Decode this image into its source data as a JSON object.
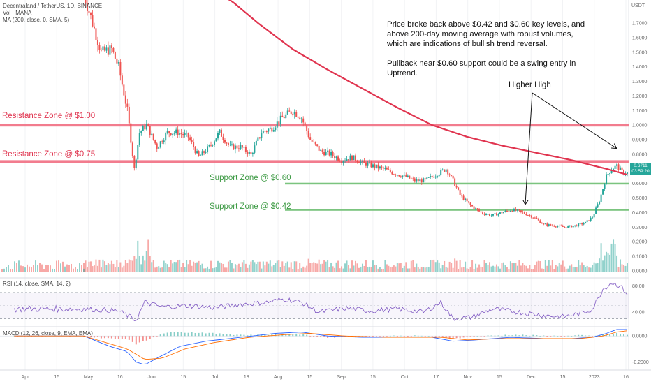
{
  "header": {
    "symbol_line": "Decentraland / TetherUS, 1D, BINANCE",
    "vol_line": "Vol · MANA",
    "ma_line": "MA (200, close, 0, SMA, 5)"
  },
  "annotations": {
    "note_p1": "Price broke back above $0.42 and $0.60 key levels, and above 200-day moving average with robust volumes, which are indications of bullish trend reversal.",
    "note_p2": "Pullback near $0.60 support could be a swing entry in Uptrend.",
    "higher_high": "Higher High"
  },
  "zones": {
    "res_100": "Resistance Zone @ $1.00",
    "res_075": "Resistance Zone @ $0.75",
    "sup_060": "Support Zone @ $0.60",
    "sup_042": "Support Zone @ $0.42"
  },
  "price_tag": {
    "price": "0.6711",
    "countdown": "03:59:20"
  },
  "axis_unit": "USDT",
  "rsi_title": "RSI (14, close, SMA, 14, 2)",
  "macd_title": "MACD (12, 26, close, 9, EMA, EMA)",
  "colors": {
    "up": "#26a69a",
    "down": "#ef5350",
    "ma": "#e0344f",
    "resistance": "#f0657a",
    "support": "#7bc47f",
    "rsi": "#7e57c2",
    "macd": "#2962ff",
    "signal": "#ff6d00"
  },
  "chart_data": {
    "type": "candlestick",
    "title": "Decentraland / TetherUS, 1D, BINANCE",
    "price_ticks": [
      "1.7000",
      "1.6000",
      "1.5000",
      "1.4000",
      "1.3000",
      "1.2000",
      "1.1000",
      "1.0000",
      "0.9000",
      "0.8000",
      "0.7000",
      "0.6000",
      "0.5000",
      "0.4000",
      "0.3000",
      "0.2000",
      "0.1000",
      "0.0000"
    ],
    "rsi_ticks": [
      "80.00",
      "40.00"
    ],
    "macd_ticks": [
      "0.0000",
      "-0.2000"
    ],
    "x_ticks": [
      "Apr",
      "15",
      "May",
      "16",
      "Jun",
      "15",
      "Jul",
      "18",
      "Aug",
      "15",
      "Sep",
      "15",
      "Oct",
      "17",
      "Nov",
      "15",
      "Dec",
      "15",
      "2023",
      "16"
    ],
    "levels": [
      1.0,
      0.75,
      0.6,
      0.42
    ],
    "close_path": [
      [
        0,
        1.9
      ],
      [
        5,
        1.7
      ],
      [
        10,
        1.5
      ],
      [
        16,
        1.52
      ],
      [
        20,
        1.4
      ],
      [
        25,
        1.1
      ],
      [
        29,
        0.7
      ],
      [
        32,
        0.95
      ],
      [
        36,
        1.0
      ],
      [
        42,
        0.85
      ],
      [
        48,
        0.95
      ],
      [
        54,
        0.95
      ],
      [
        60,
        0.92
      ],
      [
        66,
        0.78
      ],
      [
        72,
        0.85
      ],
      [
        78,
        0.95
      ],
      [
        84,
        0.85
      ],
      [
        90,
        0.85
      ],
      [
        96,
        0.8
      ],
      [
        102,
        0.95
      ],
      [
        108,
        0.98
      ],
      [
        114,
        1.05
      ],
      [
        120,
        1.1
      ],
      [
        125,
        1.05
      ],
      [
        130,
        0.9
      ],
      [
        136,
        0.82
      ],
      [
        142,
        0.8
      ],
      [
        148,
        0.76
      ],
      [
        154,
        0.78
      ],
      [
        160,
        0.74
      ],
      [
        166,
        0.72
      ],
      [
        172,
        0.7
      ],
      [
        178,
        0.67
      ],
      [
        184,
        0.65
      ],
      [
        190,
        0.62
      ],
      [
        196,
        0.62
      ],
      [
        202,
        0.66
      ],
      [
        208,
        0.7
      ],
      [
        212,
        0.62
      ],
      [
        216,
        0.52
      ],
      [
        222,
        0.45
      ],
      [
        228,
        0.4
      ],
      [
        234,
        0.38
      ],
      [
        240,
        0.4
      ],
      [
        246,
        0.42
      ],
      [
        252,
        0.4
      ],
      [
        258,
        0.37
      ],
      [
        264,
        0.32
      ],
      [
        270,
        0.31
      ],
      [
        276,
        0.3
      ],
      [
        282,
        0.31
      ],
      [
        288,
        0.33
      ],
      [
        292,
        0.37
      ],
      [
        296,
        0.48
      ],
      [
        300,
        0.65
      ],
      [
        303,
        0.7
      ],
      [
        306,
        0.72
      ],
      [
        309,
        0.68
      ],
      [
        312,
        0.67
      ]
    ],
    "ma200": [
      [
        0,
        2.4
      ],
      [
        30,
        2.2
      ],
      [
        60,
        2.0
      ],
      [
        85,
        1.85
      ],
      [
        100,
        1.7
      ],
      [
        120,
        1.52
      ],
      [
        140,
        1.38
      ],
      [
        160,
        1.25
      ],
      [
        180,
        1.12
      ],
      [
        200,
        1.0
      ],
      [
        220,
        0.92
      ],
      [
        240,
        0.86
      ],
      [
        260,
        0.81
      ],
      [
        280,
        0.76
      ],
      [
        300,
        0.7
      ],
      [
        312,
        0.66
      ]
    ],
    "rsi_range": [
      20,
      90
    ],
    "rsi": [
      [
        0,
        45
      ],
      [
        20,
        42
      ],
      [
        30,
        28
      ],
      [
        35,
        55
      ],
      [
        45,
        48
      ],
      [
        60,
        50
      ],
      [
        75,
        47
      ],
      [
        90,
        52
      ],
      [
        105,
        55
      ],
      [
        115,
        60
      ],
      [
        125,
        55
      ],
      [
        135,
        40
      ],
      [
        150,
        46
      ],
      [
        165,
        42
      ],
      [
        180,
        45
      ],
      [
        195,
        40
      ],
      [
        205,
        55
      ],
      [
        212,
        30
      ],
      [
        222,
        32
      ],
      [
        235,
        45
      ],
      [
        250,
        40
      ],
      [
        265,
        35
      ],
      [
        275,
        33
      ],
      [
        285,
        38
      ],
      [
        292,
        45
      ],
      [
        298,
        75
      ],
      [
        303,
        85
      ],
      [
        308,
        80
      ],
      [
        312,
        68
      ]
    ],
    "macd_range": [
      -0.25,
      0.06
    ],
    "macd": [
      [
        0,
        0
      ],
      [
        15,
        -0.08
      ],
      [
        25,
        -0.12
      ],
      [
        30,
        -0.2
      ],
      [
        35,
        -0.22
      ],
      [
        42,
        -0.17
      ],
      [
        55,
        -0.08
      ],
      [
        70,
        -0.04
      ],
      [
        90,
        -0.01
      ],
      [
        110,
        0.02
      ],
      [
        125,
        0.03
      ],
      [
        140,
        0.0
      ],
      [
        160,
        -0.01
      ],
      [
        180,
        -0.01
      ],
      [
        200,
        -0.01
      ],
      [
        212,
        -0.04
      ],
      [
        225,
        -0.03
      ],
      [
        245,
        -0.01
      ],
      [
        265,
        -0.02
      ],
      [
        280,
        -0.02
      ],
      [
        292,
        -0.01
      ],
      [
        300,
        0.02
      ],
      [
        306,
        0.05
      ],
      [
        312,
        0.05
      ]
    ],
    "macd_signal": [
      [
        0,
        0
      ],
      [
        15,
        -0.06
      ],
      [
        25,
        -0.1
      ],
      [
        35,
        -0.18
      ],
      [
        45,
        -0.17
      ],
      [
        58,
        -0.1
      ],
      [
        75,
        -0.05
      ],
      [
        95,
        -0.01
      ],
      [
        115,
        0.01
      ],
      [
        130,
        0.02
      ],
      [
        150,
        0.0
      ],
      [
        175,
        -0.01
      ],
      [
        205,
        -0.01
      ],
      [
        220,
        -0.03
      ],
      [
        240,
        -0.02
      ],
      [
        265,
        -0.02
      ],
      [
        285,
        -0.02
      ],
      [
        298,
        0.0
      ],
      [
        306,
        0.03
      ],
      [
        312,
        0.04
      ]
    ]
  }
}
